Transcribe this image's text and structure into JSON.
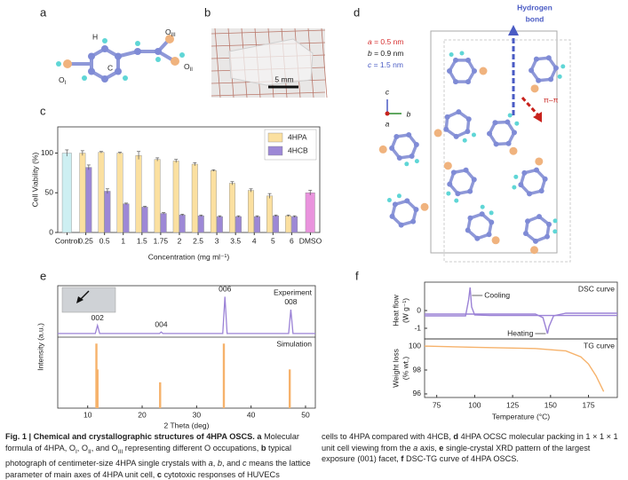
{
  "panel_letters": [
    "a",
    "b",
    "c",
    "d",
    "e",
    "f"
  ],
  "panel_a": {
    "h": "H",
    "c": "C",
    "o1": [
      "O",
      "I"
    ],
    "o2": [
      "O",
      "II"
    ],
    "o3": [
      "O",
      "III"
    ]
  },
  "panel_b": {
    "scale_bar": "5 mm"
  },
  "panel_d": {
    "hbond": [
      "Hydrogen",
      "bond"
    ],
    "lattice": [
      {
        "axis": "a",
        "text": " = 0.5 nm",
        "color": "#d62f2f"
      },
      {
        "axis": "b",
        "text": " = 0.9 nm",
        "color": "#222222"
      },
      {
        "axis": "c",
        "text": " = 1.5 nm",
        "color": "#4a5bc4"
      }
    ],
    "view_axes": [
      "c",
      "b",
      "a"
    ],
    "pi": "π–π"
  },
  "chart_data": [
    {
      "type": "bar",
      "ylabel": "Cell Viability (%)",
      "xlabel": "Concentration (mg ml⁻¹)",
      "categories": [
        "Control",
        "0.25",
        "0.5",
        "1",
        "1.5",
        "1.75",
        "2",
        "2.5",
        "3",
        "3.5",
        "4",
        "5",
        "6",
        "DMSO"
      ],
      "ylim": [
        0,
        133
      ],
      "yticks": [
        0,
        50,
        100
      ],
      "legend": "top-right",
      "series": [
        {
          "name": "4HPA",
          "color": "#fbe0a0",
          "values": [
            null,
            100,
            101,
            100,
            97,
            92,
            90,
            86,
            78,
            62,
            53,
            46,
            21,
            null
          ],
          "errors": [
            null,
            3,
            1,
            1,
            5,
            2,
            2,
            2,
            1,
            2,
            2,
            3,
            1,
            null
          ]
        },
        {
          "name": "4HCB",
          "color": "#9d88d6",
          "values": [
            null,
            82,
            52,
            36,
            32,
            24,
            22,
            21,
            20,
            20,
            20,
            21,
            20,
            null
          ],
          "errors": [
            null,
            3,
            3,
            1,
            1,
            1,
            1,
            1,
            1,
            1,
            1,
            1,
            1,
            null
          ]
        }
      ],
      "single_bars": {
        "values": [
          100,
          null,
          null,
          null,
          null,
          null,
          null,
          null,
          null,
          null,
          null,
          null,
          null,
          50
        ],
        "errors": [
          4,
          null,
          null,
          null,
          null,
          null,
          null,
          null,
          null,
          null,
          null,
          null,
          null,
          3
        ],
        "colors": [
          "#cdeff2",
          null,
          null,
          null,
          null,
          null,
          null,
          null,
          null,
          null,
          null,
          null,
          null,
          "#e993dd"
        ]
      }
    },
    {
      "type": "xrd",
      "xlabel": "2 Theta (deg)",
      "ylabel": "Intensity (a.u.)",
      "xlim": [
        4.5,
        51.8
      ],
      "xticks": [
        10,
        20,
        30,
        40,
        50
      ],
      "series": [
        {
          "name": "Experiment",
          "type": "line",
          "color": "#9b82d6",
          "ylim": [
            -10,
            130
          ],
          "x": [
            4.5,
            11.4,
            11.8,
            12.2,
            23.2,
            23.5,
            23.8,
            34.8,
            35.2,
            35.6,
            46.9,
            47.3,
            47.7,
            51.8
          ],
          "values": [
            0,
            0,
            22,
            0,
            0,
            4,
            0,
            0,
            100,
            0,
            0,
            65,
            0,
            0
          ]
        },
        {
          "name": "Simulation",
          "type": "bar",
          "color": "#f6b26b",
          "ylim": [
            0,
            110
          ],
          "x": [
            11.6,
            11.8,
            23.3,
            35.0,
            47.1
          ],
          "values": [
            100,
            60,
            40,
            100,
            60
          ]
        }
      ],
      "peak_labels": [
        "002",
        "004",
        "006",
        "008"
      ]
    },
    {
      "type": "dsc-tg",
      "xlabel": "Temperature (°C)",
      "xlim": [
        67,
        194
      ],
      "xticks": [
        75,
        100,
        125,
        150,
        175
      ],
      "panels": [
        {
          "ylabel": [
            "Heat flow",
            "(W g⁻¹)"
          ],
          "legend": "DSC curve",
          "ylim": [
            -1.6,
            1.6
          ],
          "yticks": [
            -1,
            0
          ],
          "series": [
            {
              "name": "Cooling",
              "color": "#9b82d6",
              "x": [
                67,
                94,
                96,
                97,
                98,
                100,
                110,
                194
              ],
              "values": [
                -0.3,
                -0.3,
                0.6,
                1.3,
                0.2,
                -0.25,
                -0.28,
                -0.28
              ]
            },
            {
              "name": "Heating",
              "color": "#9b82d6",
              "x": [
                67,
                140,
                145,
                147,
                148,
                149,
                152,
                160,
                194
              ],
              "values": [
                -0.2,
                -0.2,
                -0.4,
                -1.0,
                -1.3,
                -0.9,
                -0.3,
                -0.15,
                -0.15
              ]
            }
          ]
        },
        {
          "ylabel": [
            "Weight loss",
            "(% wt.)"
          ],
          "legend": "TG curve",
          "ylim": [
            95.7,
            100.6
          ],
          "yticks": [
            96,
            98,
            100
          ],
          "series": [
            {
              "color": "#f6b26b",
              "x": [
                67,
                100,
                140,
                160,
                170,
                175,
                180,
                185
              ],
              "values": [
                100,
                99.9,
                99.8,
                99.6,
                99.1,
                98.5,
                97.5,
                96.2
              ]
            }
          ]
        }
      ]
    }
  ],
  "caption": {
    "columns": [
      [
        {
          "text": "Fig. 1 | Chemical and crystallographic structures of 4HPA OSCS.",
          "style": "b"
        },
        {
          "text": " ",
          "style": ""
        },
        {
          "text": "a",
          "style": "b"
        },
        {
          "text": " Molecular formula of 4HPA, O",
          "style": ""
        },
        {
          "text": "I",
          "style": "sub"
        },
        {
          "text": ", O",
          "style": ""
        },
        {
          "text": "II",
          "style": "sub"
        },
        {
          "text": ", and O",
          "style": ""
        },
        {
          "text": "III",
          "style": "sub"
        },
        {
          "text": " representing different O occupations, ",
          "style": ""
        },
        {
          "text": "b",
          "style": "b"
        },
        {
          "text": " typical photograph of centimeter-size 4HPA single crystals with ",
          "style": ""
        },
        {
          "text": "a",
          "style": "i"
        },
        {
          "text": ", ",
          "style": ""
        },
        {
          "text": "b",
          "style": "i"
        },
        {
          "text": ", and ",
          "style": ""
        },
        {
          "text": "c",
          "style": "i"
        },
        {
          "text": " means the lattice parameter of main axes of 4HPA unit cell, ",
          "style": ""
        },
        {
          "text": "c",
          "style": "b"
        },
        {
          "text": " cytotoxic responses of HUVECs",
          "style": ""
        }
      ],
      [
        {
          "text": "cells to 4HPA compared with 4HCB, ",
          "style": ""
        },
        {
          "text": "d",
          "style": "b"
        },
        {
          "text": " 4HPA OCSC molecular packing in 1 × 1 × 1 unit cell viewing from the ",
          "style": ""
        },
        {
          "text": "a",
          "style": "i"
        },
        {
          "text": " axis, ",
          "style": ""
        },
        {
          "text": "e",
          "style": "b"
        },
        {
          "text": " single-crystal XRD pattern of the largest exposure (001) facet, ",
          "style": ""
        },
        {
          "text": "f",
          "style": "b"
        },
        {
          "text": " DSC-TG curve of 4HPA OSCS.",
          "style": ""
        }
      ]
    ]
  }
}
